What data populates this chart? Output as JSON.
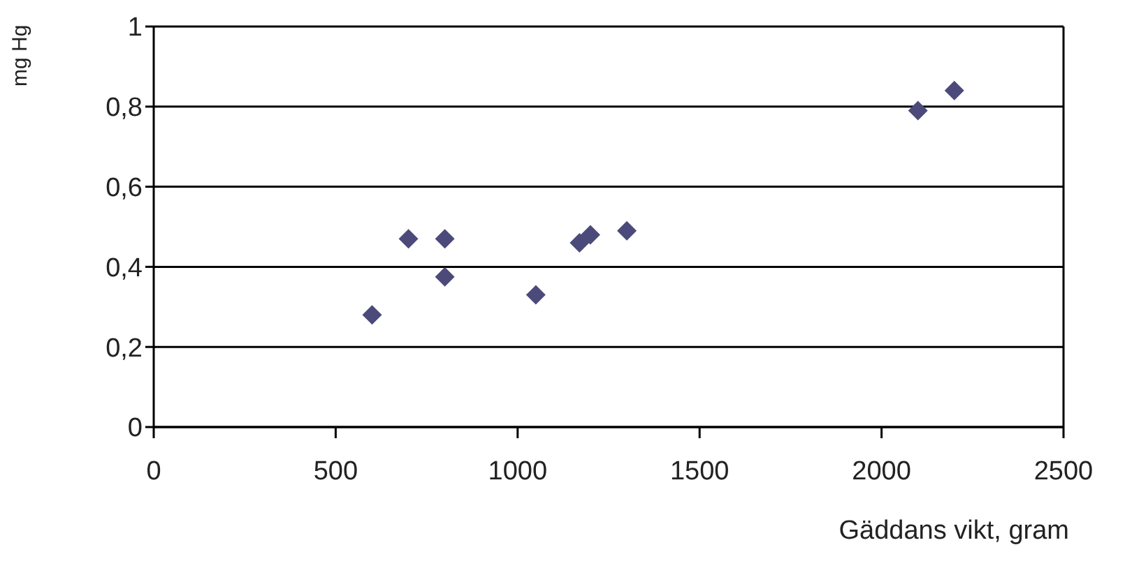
{
  "chart_data": {
    "type": "scatter",
    "xlabel": "Gäddans vikt, gram",
    "ylabel": "mg Hg",
    "x": [
      600,
      700,
      800,
      800,
      1050,
      1170,
      1200,
      1300,
      2100,
      2200
    ],
    "values": [
      0.28,
      0.47,
      0.47,
      0.375,
      0.33,
      0.46,
      0.48,
      0.49,
      0.79,
      0.84
    ],
    "color": "#4b4a7a",
    "marker": "diamond",
    "xlim": [
      0,
      2500
    ],
    "xticks": [
      0,
      500,
      1000,
      1500,
      2000,
      2500
    ],
    "ylim": [
      0,
      1
    ],
    "yticks": [
      {
        "value": 0,
        "label": "0"
      },
      {
        "value": 0.2,
        "label": "0,2"
      },
      {
        "value": 0.4,
        "label": "0,4"
      },
      {
        "value": 0.6,
        "label": "0,6"
      },
      {
        "value": 0.8,
        "label": "0,8"
      },
      {
        "value": 1,
        "label": "1"
      }
    ],
    "grid": "y"
  }
}
